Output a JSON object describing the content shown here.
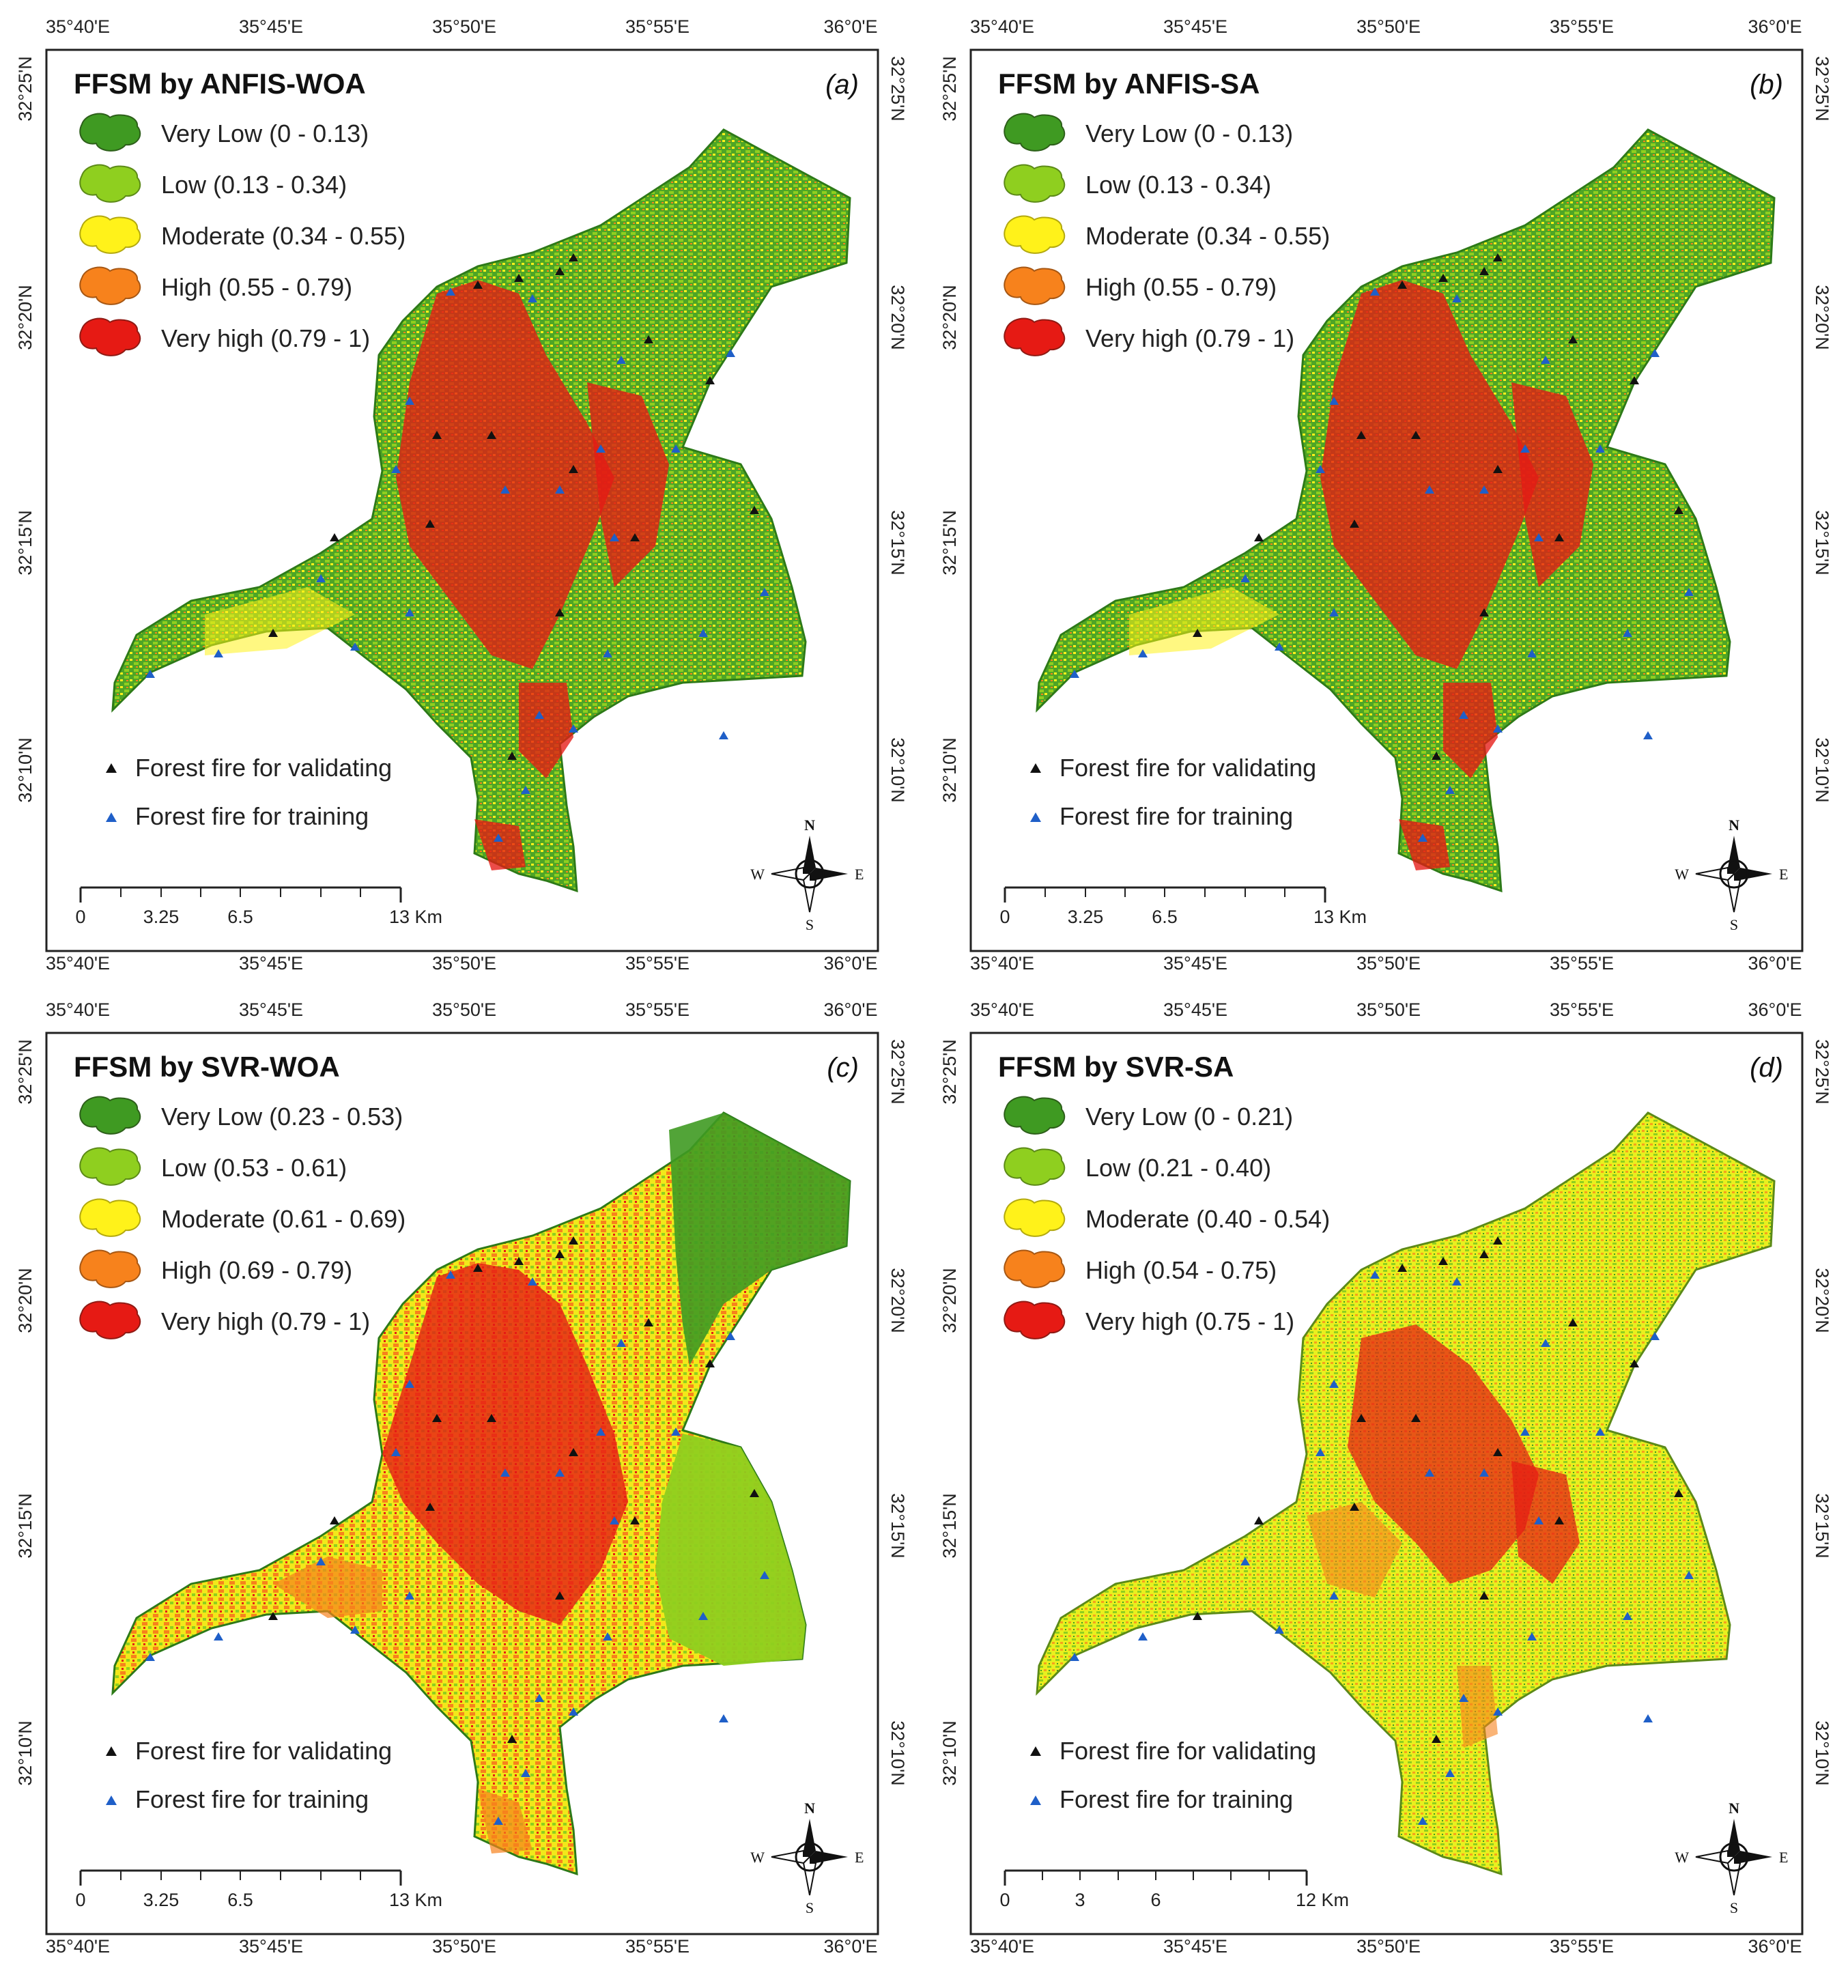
{
  "colors": {
    "very_low": "#3f9a22",
    "low": "#8fcf1f",
    "moderate": "#fff21a",
    "high": "#f7821c",
    "very_high": "#e61a14",
    "validating_marker": "#111111",
    "training_marker": "#1f5fc8"
  },
  "marker_legend": {
    "validating": "Forest fire for validating",
    "training": "Forest fire for training"
  },
  "north_arrow": {
    "n": "N",
    "s": "S",
    "w": "W",
    "e": "E"
  },
  "axes": {
    "lon_labels": [
      "35°40'E",
      "35°45'E",
      "35°50'E",
      "35°55'E",
      "36°0'E"
    ],
    "lat_labels": [
      "32°25'N",
      "32°20'N",
      "32°15'N",
      "32°10'N"
    ]
  },
  "panels": [
    {
      "title": "FFSM by ANFIS-WOA",
      "tag": "(a)",
      "classes": [
        "Very Low (0 - 0.13)",
        "Low (0.13 - 0.34)",
        "Moderate (0.34 - 0.55)",
        "High (0.55 - 0.79)",
        "Very high (0.79 - 1)"
      ],
      "scale": {
        "ticks": [
          "0",
          "3.25",
          "6.5"
        ],
        "end": "13 Km"
      }
    },
    {
      "title": "FFSM by ANFIS-SA",
      "tag": "(b)",
      "classes": [
        "Very Low (0 - 0.13)",
        "Low (0.13 - 0.34)",
        "Moderate (0.34 - 0.55)",
        "High (0.55 - 0.79)",
        "Very high (0.79 - 1)"
      ],
      "scale": {
        "ticks": [
          "0",
          "3.25",
          "6.5"
        ],
        "end": "13 Km"
      }
    },
    {
      "title": "FFSM by SVR-WOA",
      "tag": "(c)",
      "classes": [
        "Very Low (0.23 - 0.53)",
        "Low (0.53 - 0.61)",
        "Moderate (0.61 - 0.69)",
        "High (0.69 - 0.79)",
        "Very high (0.79 - 1)"
      ],
      "scale": {
        "ticks": [
          "0",
          "3.25",
          "6.5"
        ],
        "end": "13 Km"
      }
    },
    {
      "title": "FFSM by SVR-SA",
      "tag": "(d)",
      "classes": [
        "Very Low (0 - 0.21)",
        "Low (0.21 - 0.40)",
        "Moderate (0.40 - 0.54)",
        "High (0.54 - 0.75)",
        "Very high (0.75 - 1)"
      ],
      "scale": {
        "ticks": [
          "0",
          "3",
          "6"
        ],
        "end": "12 Km"
      }
    }
  ]
}
